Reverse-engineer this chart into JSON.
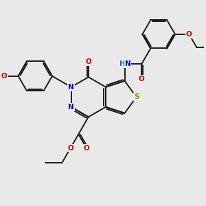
{
  "bg_color": "#e9e9e9",
  "bond_color": "#1a1a1a",
  "bond_width": 1.4,
  "atom_colors": {
    "N": "#0000cc",
    "O": "#cc0000",
    "S": "#999900",
    "H": "#008080",
    "C": "#1a1a1a"
  },
  "font_size_atom": 7.5,
  "font_size_group": 6.5
}
